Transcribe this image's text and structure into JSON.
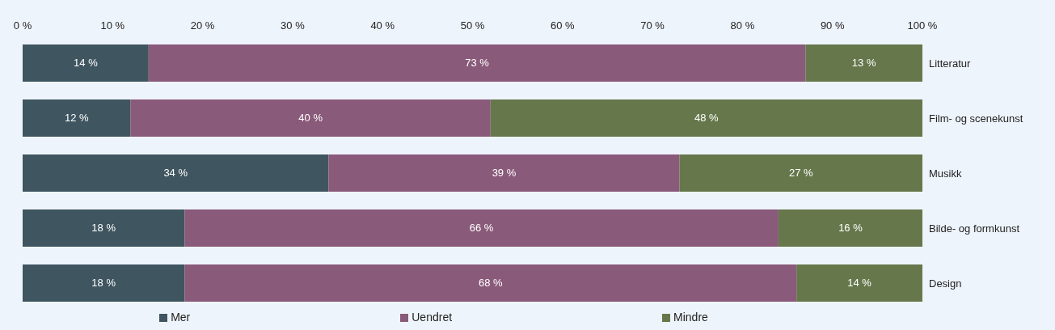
{
  "chart_data": {
    "type": "bar",
    "orientation": "horizontal",
    "stacked": true,
    "categories": [
      "Litteratur",
      "Film- og scenekunst",
      "Musikk",
      "Bilde- og formkunst",
      "Design"
    ],
    "series": [
      {
        "name": "Mer",
        "color": "#3f5560",
        "values": [
          14,
          12,
          34,
          18,
          18
        ],
        "value_labels": [
          "14 %",
          "12 %",
          "34 %",
          "18 %",
          "18 %"
        ]
      },
      {
        "name": "Uendret",
        "color": "#8a5a7a",
        "values": [
          73,
          40,
          39,
          66,
          68
        ],
        "value_labels": [
          "73 %",
          "40 %",
          "39 %",
          "66 %",
          "68 %"
        ]
      },
      {
        "name": "Mindre",
        "color": "#66784b",
        "values": [
          13,
          48,
          27,
          16,
          14
        ],
        "value_labels": [
          "13 %",
          "48 %",
          "27 %",
          "16 %",
          "14 %"
        ]
      }
    ],
    "xlim": [
      0,
      100
    ],
    "xticks": [
      {
        "value": 0,
        "label": "0 %"
      },
      {
        "value": 10,
        "label": "10 %"
      },
      {
        "value": 20,
        "label": "20 %"
      },
      {
        "value": 30,
        "label": "30 %"
      },
      {
        "value": 40,
        "label": "40 %"
      },
      {
        "value": 50,
        "label": "50 %"
      },
      {
        "value": 60,
        "label": "60 %"
      },
      {
        "value": 70,
        "label": "70 %"
      },
      {
        "value": 80,
        "label": "80 %"
      },
      {
        "value": 90,
        "label": "90 %"
      },
      {
        "value": 100,
        "label": "100 %"
      }
    ],
    "grid": false,
    "legend": "bottom"
  }
}
